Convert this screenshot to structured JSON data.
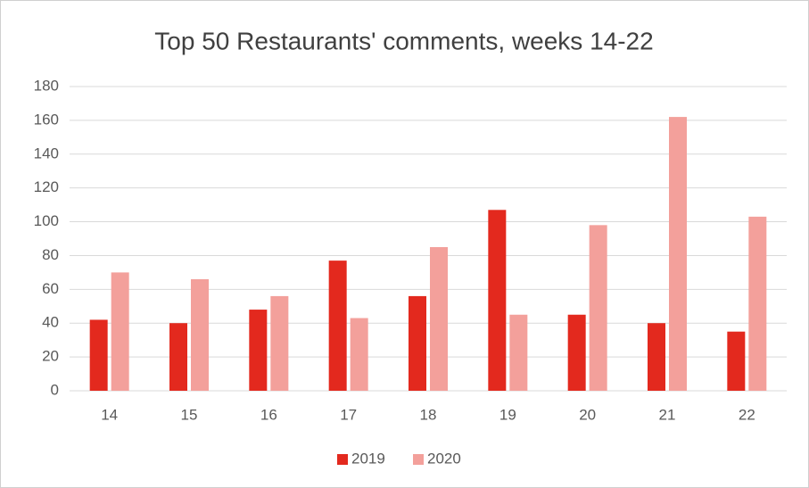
{
  "chart_data": {
    "type": "bar",
    "title": "Top 50 Restaurants' comments, weeks 14-22",
    "categories": [
      "14",
      "15",
      "16",
      "17",
      "18",
      "19",
      "20",
      "21",
      "22"
    ],
    "series": [
      {
        "name": "2019",
        "color": "#e3291e",
        "values": [
          42,
          40,
          48,
          77,
          56,
          107,
          45,
          40,
          35
        ]
      },
      {
        "name": "2020",
        "color": "#f3a09b",
        "values": [
          70,
          66,
          56,
          43,
          85,
          45,
          98,
          162,
          103
        ]
      }
    ],
    "ylim": [
      0,
      180
    ],
    "yticks": [
      0,
      20,
      40,
      60,
      80,
      100,
      120,
      140,
      160,
      180
    ],
    "grid": true,
    "legend": "bottom"
  }
}
